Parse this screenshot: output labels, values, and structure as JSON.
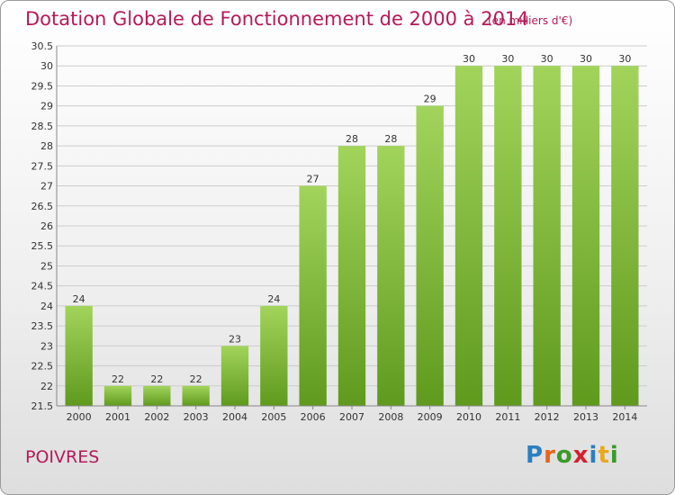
{
  "header": {
    "title": "Dotation Globale de Fonctionnement de 2000 à 2014",
    "subtitle": "(en milliers d'€)"
  },
  "footer": {
    "place": "POIVRES",
    "logo": "Proxiti"
  },
  "colors": {
    "title": "#b51a5a",
    "bar_top": "#a2d45c",
    "bar_bottom": "#5f9a1d",
    "grid": "#cccccc"
  },
  "chart_data": {
    "type": "bar",
    "title": "Dotation Globale de Fonctionnement de 2000 à 2014",
    "unit": "(en milliers d'€)",
    "xlabel": "",
    "ylabel": "",
    "categories": [
      "2000",
      "2001",
      "2002",
      "2003",
      "2004",
      "2005",
      "2006",
      "2007",
      "2008",
      "2009",
      "2010",
      "2011",
      "2012",
      "2013",
      "2014"
    ],
    "values": [
      24,
      22,
      22,
      22,
      23,
      24,
      27,
      28,
      28,
      29,
      30,
      30,
      30,
      30,
      30
    ],
    "ylim": [
      21.5,
      30.5
    ],
    "yticks": [
      "21.5",
      "22",
      "22.5",
      "23",
      "23.5",
      "24",
      "24.5",
      "25",
      "25.5",
      "26",
      "26.5",
      "27",
      "27.5",
      "28",
      "28.5",
      "29",
      "29.5",
      "30",
      "30.5"
    ],
    "grid": true,
    "data_labels": true
  }
}
